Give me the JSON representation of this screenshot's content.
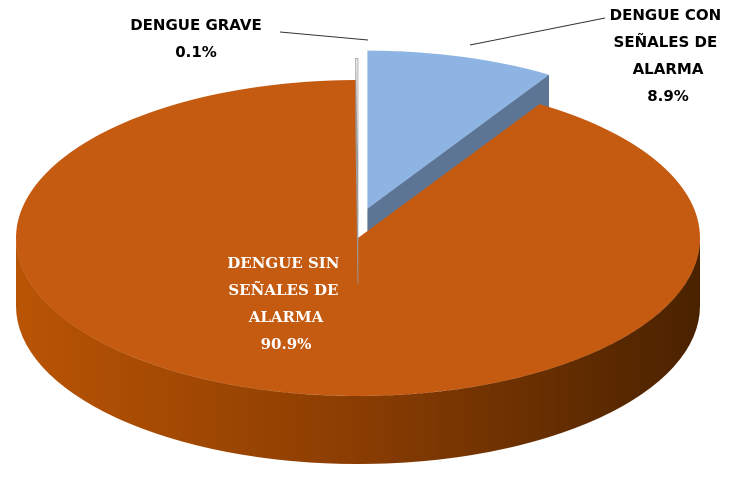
{
  "chart_data": {
    "type": "pie",
    "categories": [
      "DENGUE CON SEÑALES DE ALARMA",
      "DENGUE SIN SEÑALES DE ALARMA",
      "DENGUE GRAVE"
    ],
    "values": [
      8.9,
      90.9,
      0.1
    ],
    "value_labels": [
      "8.9%",
      "90.9%",
      "0.1%"
    ],
    "colors": [
      "#8eb4e3",
      "#c55a11",
      "#ffffff"
    ]
  }
}
